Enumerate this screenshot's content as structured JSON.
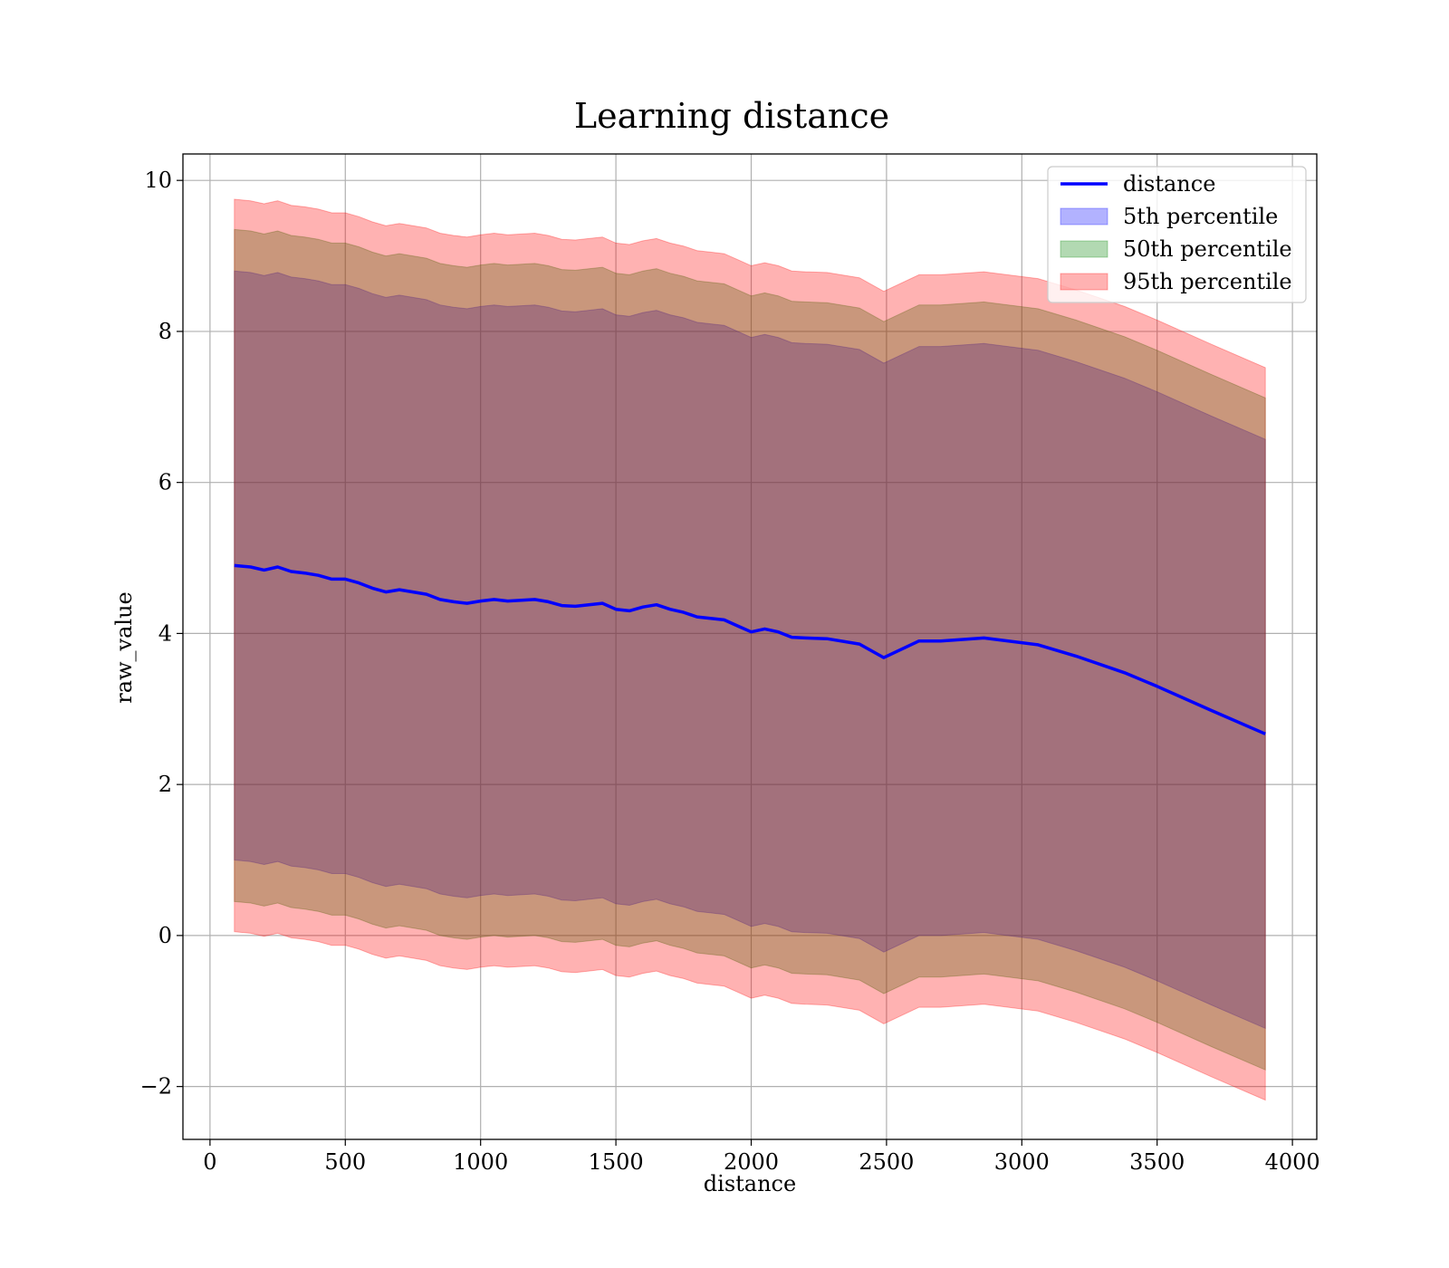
{
  "chart_data": {
    "type": "area",
    "title": "Learning distance",
    "xlabel": "distance",
    "ylabel": "raw_value",
    "xlim": [
      -100,
      4090
    ],
    "ylim": [
      -2.7,
      10.35
    ],
    "xticks": [
      0,
      500,
      1000,
      1500,
      2000,
      2500,
      3000,
      3500,
      4000
    ],
    "xtick_labels": [
      "0",
      "500",
      "1000",
      "1500",
      "2000",
      "2500",
      "3000",
      "3500",
      "4000"
    ],
    "yticks": [
      -2,
      0,
      2,
      4,
      6,
      8,
      10
    ],
    "ytick_labels": [
      "−2",
      "0",
      "2",
      "4",
      "6",
      "8",
      "10"
    ],
    "grid": true,
    "legend_position": "top-right",
    "x": [
      90,
      150,
      200,
      250,
      300,
      350,
      400,
      450,
      500,
      550,
      600,
      650,
      700,
      750,
      800,
      850,
      900,
      950,
      1000,
      1050,
      1100,
      1150,
      1200,
      1250,
      1300,
      1350,
      1400,
      1450,
      1500,
      1550,
      1600,
      1650,
      1700,
      1750,
      1800,
      1850,
      1900,
      1950,
      2000,
      2050,
      2100,
      2150,
      2200,
      2280,
      2400,
      2490,
      2620,
      2700,
      2860,
      3060,
      3200,
      3380,
      3500,
      3700,
      3900
    ],
    "series": [
      {
        "name": "distance",
        "kind": "line",
        "color": "#0000ff",
        "values": [
          4.9,
          4.88,
          4.84,
          4.88,
          4.82,
          4.8,
          4.77,
          4.72,
          4.72,
          4.67,
          4.6,
          4.55,
          4.58,
          4.55,
          4.52,
          4.45,
          4.42,
          4.4,
          4.43,
          4.45,
          4.43,
          4.44,
          4.45,
          4.42,
          4.37,
          4.36,
          4.38,
          4.4,
          4.32,
          4.3,
          4.35,
          4.38,
          4.32,
          4.28,
          4.22,
          4.2,
          4.18,
          4.1,
          4.02,
          4.06,
          4.02,
          3.95,
          3.94,
          3.93,
          3.86,
          3.68,
          3.9,
          3.9,
          3.94,
          3.85,
          3.7,
          3.48,
          3.3,
          2.98,
          2.67
        ]
      },
      {
        "name": "5th percentile",
        "kind": "band",
        "color": "#0000ff",
        "opacity": 0.3,
        "offset": 3.9
      },
      {
        "name": "50th percentile",
        "kind": "band",
        "color": "#008000",
        "opacity": 0.3,
        "offset": 4.45
      },
      {
        "name": "95th percentile",
        "kind": "band",
        "color": "#ff0000",
        "opacity": 0.3,
        "offset": 4.85
      }
    ]
  }
}
